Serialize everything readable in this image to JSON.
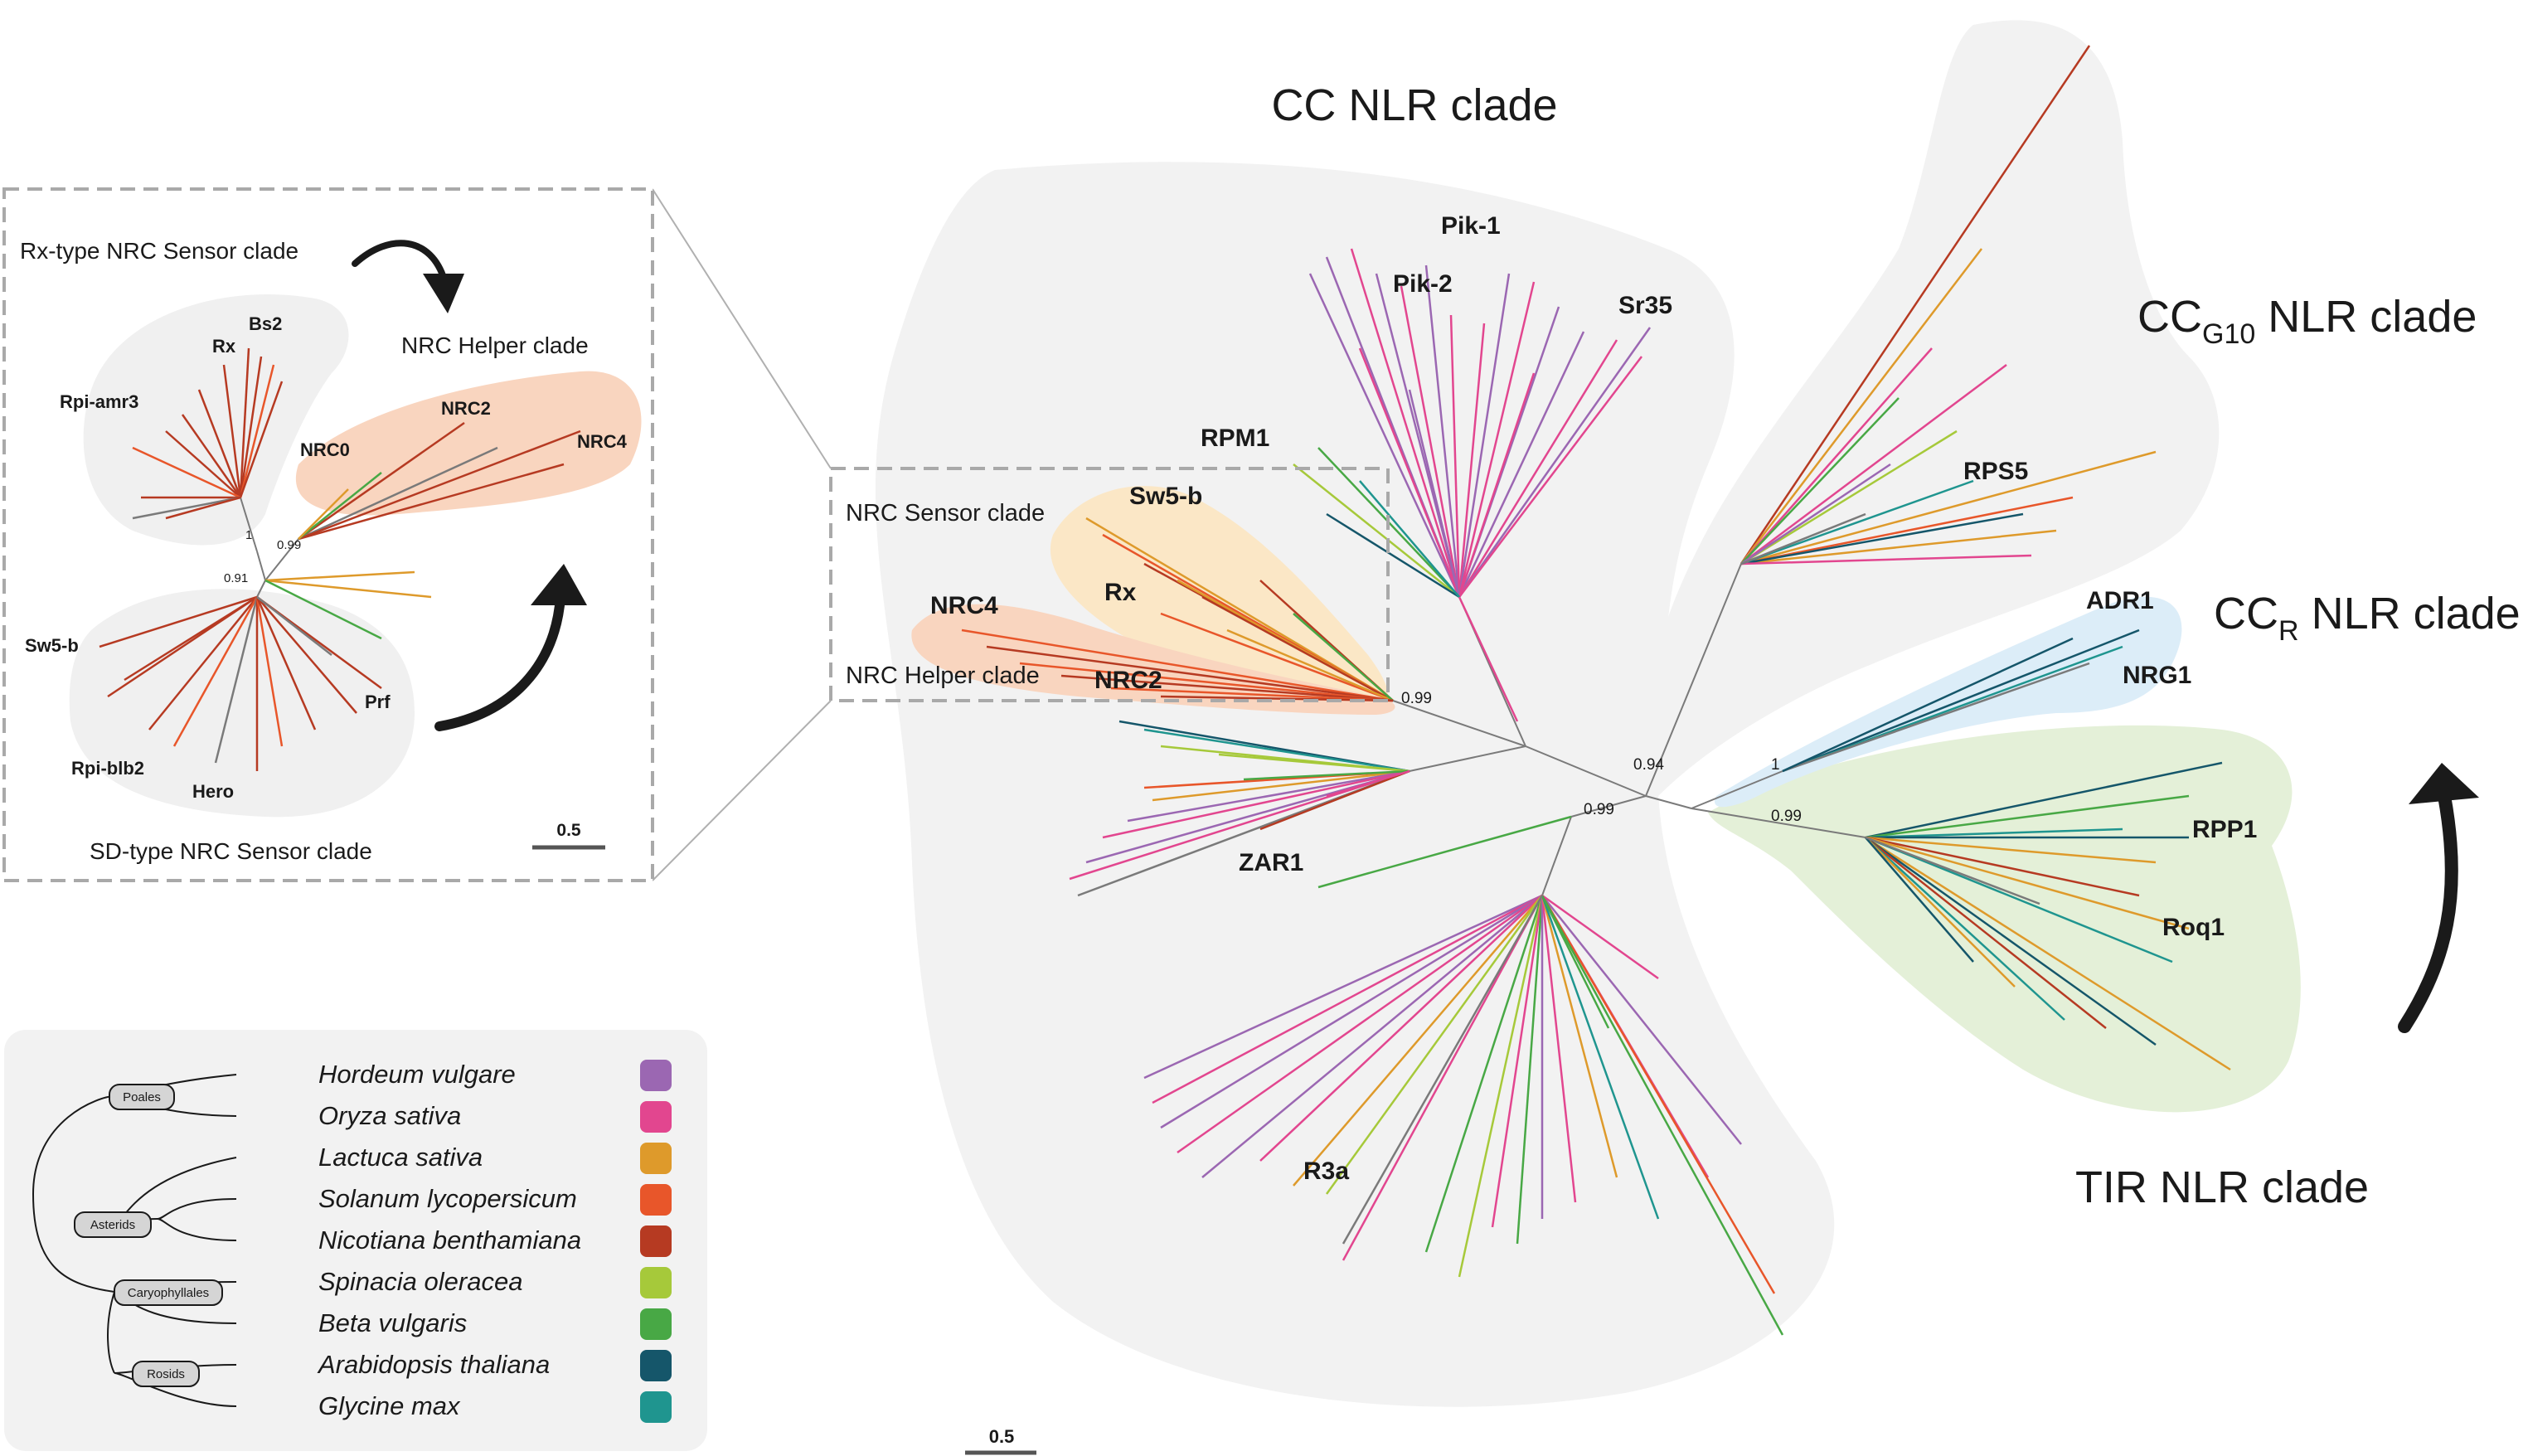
{
  "main_tree": {
    "clade_titles": {
      "cc": "CC NLR clade",
      "ccg10_main": "CC",
      "ccg10_sub": "G10",
      "ccg10_rest": " NLR clade",
      "ccr_main": "CC",
      "ccr_sub": "R",
      "ccr_rest": " NLR clade",
      "tir": "TIR NLR clade"
    },
    "gene_labels": {
      "pik1": "Pik-1",
      "pik2": "Pik-2",
      "sr35": "Sr35",
      "rpm1": "RPM1",
      "sw5b": "Sw5-b",
      "rx": "Rx",
      "nrc4": "NRC4",
      "nrc2": "NRC2",
      "zar1": "ZAR1",
      "r3a": "R3a",
      "rps5": "RPS5",
      "adr1": "ADR1",
      "nrg1": "NRG1",
      "rpp1": "RPP1",
      "roq1": "Roq1"
    },
    "box_labels": {
      "sensor": "NRC Sensor clade",
      "helper": "NRC Helper clade"
    },
    "support_values": {
      "nrc_node": "0.99",
      "cc_node": "0.99",
      "ccg10_node": "0.94",
      "ccr_node": "1",
      "tir_node": "0.99"
    },
    "scale_bar": "0.5"
  },
  "inset_tree": {
    "clade_labels": {
      "rx_sensor": "Rx-type NRC Sensor clade",
      "helper": "NRC Helper clade",
      "sd_sensor": "SD-type NRC Sensor clade"
    },
    "gene_labels": {
      "rx": "Rx",
      "bs2": "Bs2",
      "rpiamr3": "Rpi-amr3",
      "nrc0": "NRC0",
      "nrc2": "NRC2",
      "nrc4": "NRC4",
      "sw5b": "Sw5-b",
      "prf": "Prf",
      "rpiblb2": "Rpi-blb2",
      "hero": "Hero"
    },
    "support_values": {
      "v1": "1",
      "v099": "0.99",
      "v091": "0.91"
    },
    "scale_bar": "0.5"
  },
  "legend": {
    "groups": {
      "poales": "Poales",
      "asterids": "Asterids",
      "caryophyllales": "Caryophyllales",
      "rosids": "Rosids"
    },
    "species": [
      {
        "name": "Hordeum vulgare",
        "color": "#9b67b2"
      },
      {
        "name": "Oryza sativa",
        "color": "#e2468f"
      },
      {
        "name": "Lactuca sativa",
        "color": "#de9a2b"
      },
      {
        "name": "Solanum lycopersicum",
        "color": "#e8562a"
      },
      {
        "name": "Nicotiana benthamiana",
        "color": "#b63a22"
      },
      {
        "name": "Spinacia oleracea",
        "color": "#a6c93a"
      },
      {
        "name": "Beta vulgaris",
        "color": "#48a845"
      },
      {
        "name": "Arabidopsis thaliana",
        "color": "#15566a"
      },
      {
        "name": "Glycine max",
        "color": "#1f958f"
      }
    ]
  },
  "colors": {
    "clade_bg_grey": "#f0f0f0",
    "nrc_sensor_bg": "#fbe7c6",
    "nrc_helper_bg": "#f9d5bf",
    "ccr_bg": "#dcedf8",
    "tir_bg": "#e4f0d8"
  }
}
